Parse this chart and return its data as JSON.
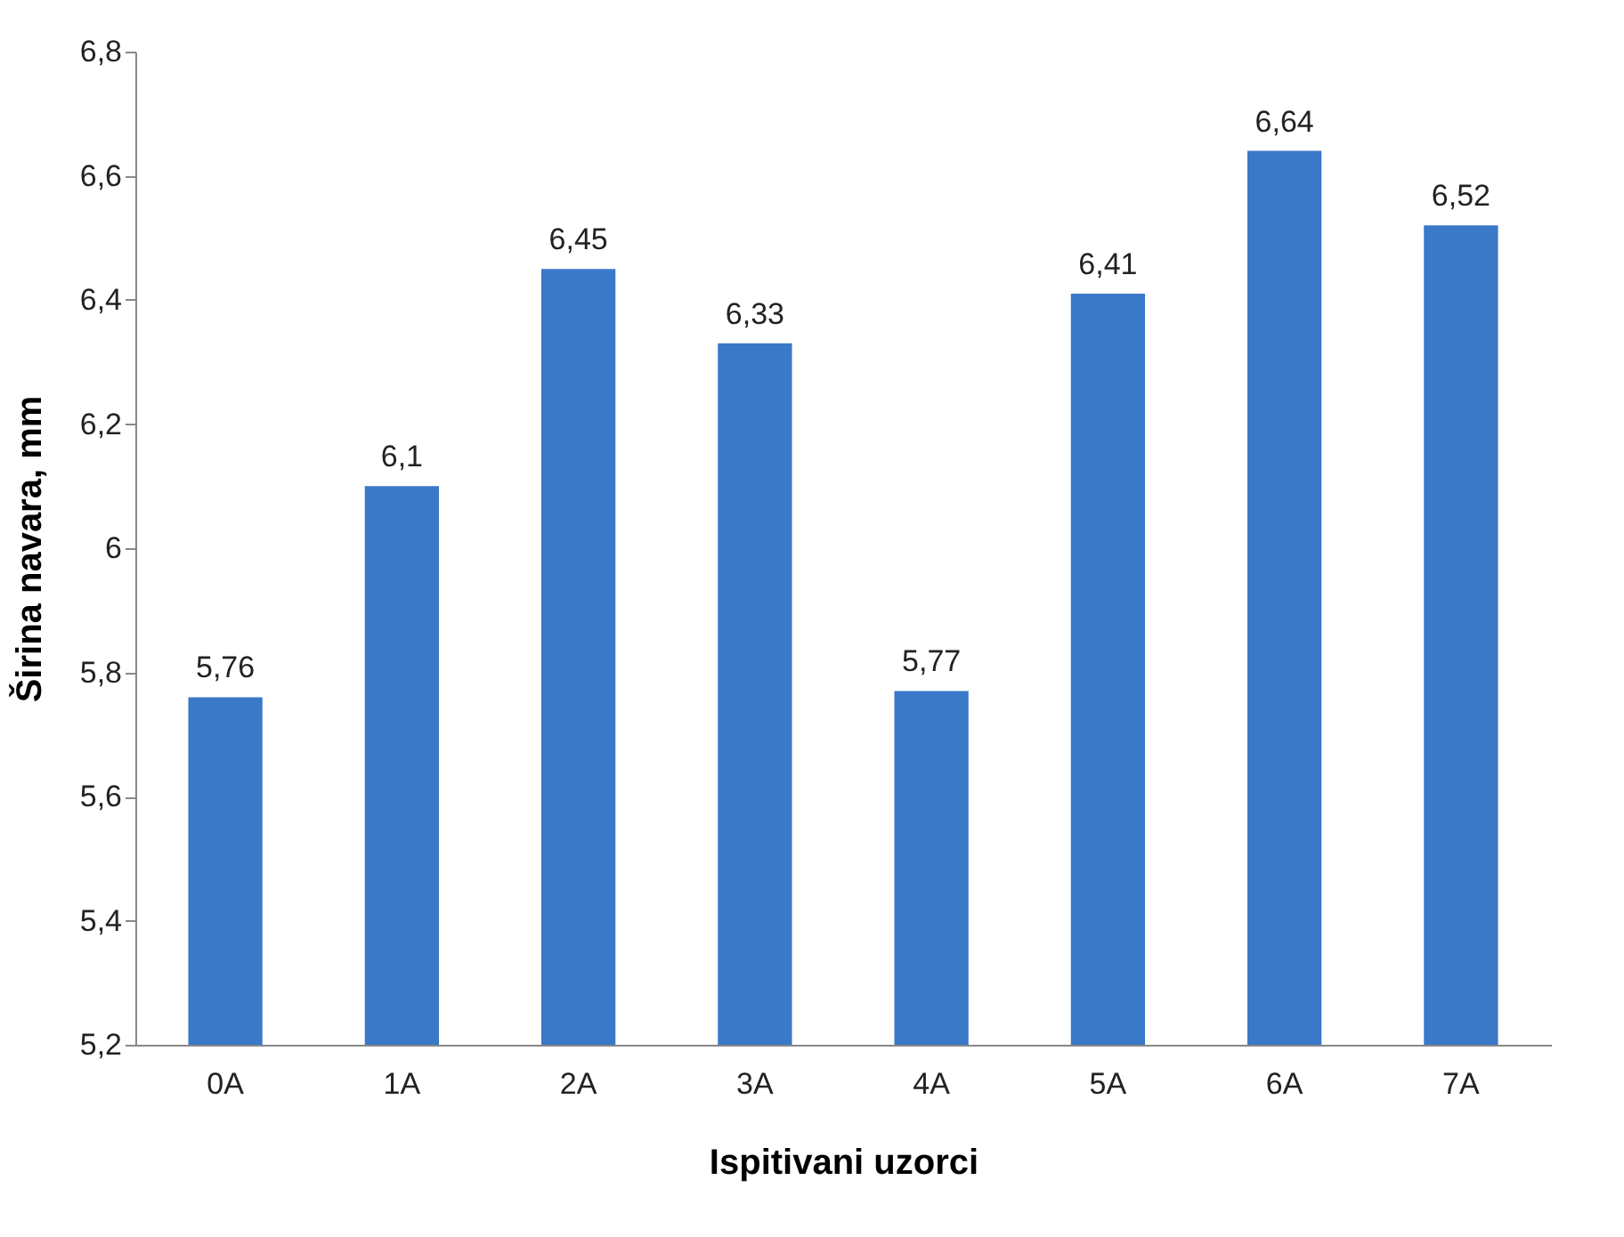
{
  "chart_data": {
    "type": "bar",
    "xlabel": "Ispitivani uzorci",
    "ylabel": "Širina navara, mm",
    "categories": [
      "0A",
      "1A",
      "2A",
      "3A",
      "4A",
      "5A",
      "6A",
      "7A"
    ],
    "values": [
      5.76,
      6.1,
      6.45,
      6.33,
      5.77,
      6.41,
      6.64,
      6.52
    ],
    "value_labels": [
      "5,76",
      "6,1",
      "6,45",
      "6,33",
      "5,77",
      "6,41",
      "6,64",
      "6,52"
    ],
    "color": "#3a78c8",
    "ylim": [
      5.2,
      6.8
    ],
    "yticks": [
      {
        "value": 5.2,
        "label": "5,2"
      },
      {
        "value": 5.4,
        "label": "5,4"
      },
      {
        "value": 5.6,
        "label": "5,6"
      },
      {
        "value": 5.8,
        "label": "5,8"
      },
      6,
      {
        "value": 6.2,
        "label": "6,2"
      },
      {
        "value": 6.4,
        "label": "6,4"
      },
      {
        "value": 6.6,
        "label": "6,6"
      },
      {
        "value": 6.8,
        "label": "6,8"
      }
    ],
    "grid": false
  }
}
